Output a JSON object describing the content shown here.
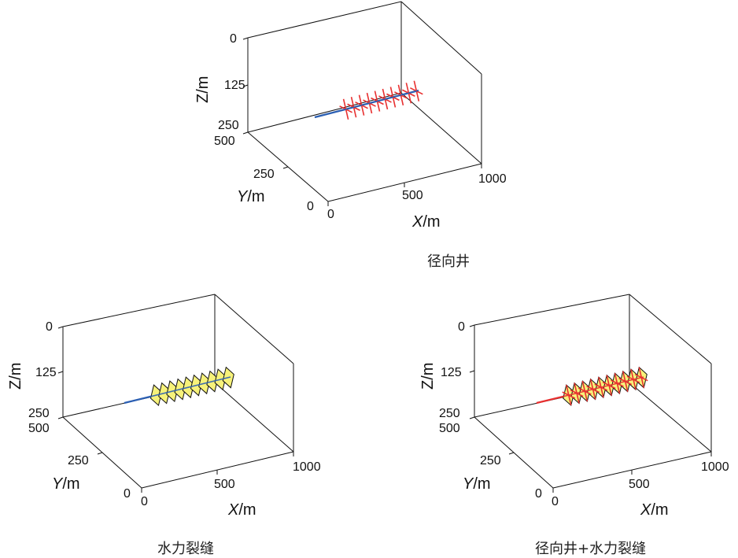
{
  "panels": {
    "radial": {
      "caption": "径向井"
    },
    "frac": {
      "caption": "水力裂缝"
    },
    "combo": {
      "caption": "径向井+水力裂缝"
    }
  },
  "axes": {
    "z_label": "Z/m",
    "y_label_italic": "Y",
    "x_label_italic": "X",
    "unit": "/m",
    "z_ticks": [
      "0",
      "125",
      "250"
    ],
    "y_ticks": [
      "500",
      "250",
      "0"
    ],
    "x_ticks": [
      "0",
      "500",
      "1000"
    ]
  },
  "colors": {
    "frame": "#111111",
    "wellbore_blue": "#2b5fb3",
    "wellbore_red": "#e83030",
    "radial_well": "#e83030",
    "fracture_fill": "#f7f27a"
  },
  "chart_data": [
    {
      "type": "scatter",
      "panel": "radial",
      "title": "径向井",
      "xlabel": "X/m",
      "ylabel": "Y/m",
      "zlabel": "Z/m",
      "xlim": [
        0,
        1000
      ],
      "ylim": [
        0,
        500
      ],
      "zlim": [
        0,
        250
      ],
      "z_reversed": true,
      "features": [
        "horizontal-wellbore",
        "radial-wells"
      ],
      "radial_well_count": 10
    },
    {
      "type": "scatter",
      "panel": "frac",
      "title": "水力裂缝",
      "xlabel": "X/m",
      "ylabel": "Y/m",
      "zlabel": "Z/m",
      "xlim": [
        0,
        1000
      ],
      "ylim": [
        0,
        500
      ],
      "zlim": [
        0,
        250
      ],
      "z_reversed": true,
      "features": [
        "horizontal-wellbore",
        "hydraulic-fractures"
      ],
      "fracture_count": 10
    },
    {
      "type": "scatter",
      "panel": "combo",
      "title": "径向井+水力裂缝",
      "xlabel": "X/m",
      "ylabel": "Y/m",
      "zlabel": "Z/m",
      "xlim": [
        0,
        1000
      ],
      "ylim": [
        0,
        500
      ],
      "zlim": [
        0,
        250
      ],
      "z_reversed": true,
      "features": [
        "horizontal-wellbore",
        "hydraulic-fractures",
        "radial-wells"
      ],
      "radial_well_count": 10,
      "fracture_count": 10
    }
  ]
}
